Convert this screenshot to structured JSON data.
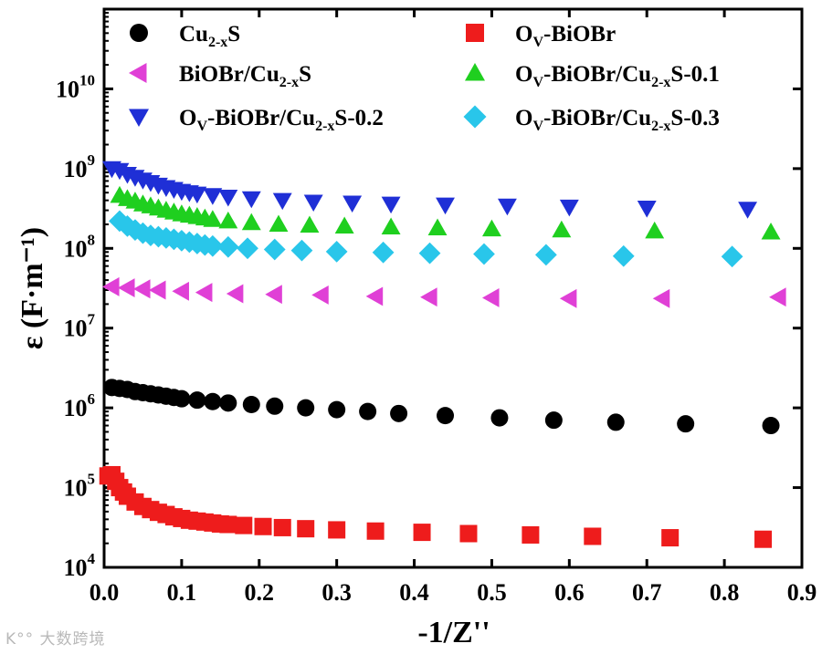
{
  "chart_data": {
    "type": "scatter",
    "xlabel": "-1/Z''",
    "ylabel": "ε (F·m⁻¹)",
    "xlim": [
      0.0,
      0.9
    ],
    "ylim_log10": [
      4,
      11
    ],
    "x_ticks": [
      "0.0",
      "0.1",
      "0.2",
      "0.3",
      "0.4",
      "0.5",
      "0.6",
      "0.7",
      "0.8",
      "0.9"
    ],
    "y_ticks": [
      {
        "base": "10",
        "exp": "4"
      },
      {
        "base": "10",
        "exp": "5"
      },
      {
        "base": "10",
        "exp": "6"
      },
      {
        "base": "10",
        "exp": "7"
      },
      {
        "base": "10",
        "exp": "8"
      },
      {
        "base": "10",
        "exp": "9"
      },
      {
        "base": "10",
        "exp": "10"
      }
    ],
    "legend": "top",
    "series": [
      {
        "name": "Cu2-xS",
        "label": {
          "pre": "",
          "pre_sub": "",
          "main": "Cu",
          "sub": "2-x",
          "post": "S"
        },
        "marker": "circle",
        "color": "#000000",
        "x": [
          0.01,
          0.02,
          0.03,
          0.04,
          0.05,
          0.06,
          0.07,
          0.08,
          0.09,
          0.1,
          0.12,
          0.14,
          0.16,
          0.19,
          0.22,
          0.26,
          0.3,
          0.34,
          0.38,
          0.44,
          0.51,
          0.58,
          0.66,
          0.75,
          0.86
        ],
        "y": [
          1800000.0,
          1750000.0,
          1700000.0,
          1600000.0,
          1550000.0,
          1500000.0,
          1450000.0,
          1400000.0,
          1350000.0,
          1300000.0,
          1250000.0,
          1200000.0,
          1150000.0,
          1100000.0,
          1050000.0,
          1000000.0,
          950000.0,
          900000.0,
          850000.0,
          800000.0,
          750000.0,
          700000.0,
          660000.0,
          630000.0,
          600000.0
        ]
      },
      {
        "name": "OV-BiOBr",
        "label": {
          "pre": "O",
          "pre_sub": "V",
          "main": "-BiOBr",
          "sub": "",
          "post": ""
        },
        "marker": "square",
        "color": "#ee1c1c",
        "x": [
          0.005,
          0.01,
          0.015,
          0.02,
          0.025,
          0.03,
          0.04,
          0.05,
          0.06,
          0.07,
          0.08,
          0.09,
          0.1,
          0.11,
          0.12,
          0.13,
          0.14,
          0.15,
          0.16,
          0.18,
          0.205,
          0.23,
          0.26,
          0.3,
          0.35,
          0.41,
          0.47,
          0.55,
          0.63,
          0.73,
          0.85
        ],
        "y": [
          140000.0,
          145000.0,
          120000.0,
          100000.0,
          88000.0,
          78000.0,
          66000.0,
          58000.0,
          53000.0,
          49000.0,
          46000.0,
          43000.0,
          41000.0,
          39000.0,
          38000.0,
          37000.0,
          36000.0,
          35000.0,
          34500.0,
          33500.0,
          32500.0,
          31500.0,
          30500.0,
          29500.0,
          28500.0,
          27500.0,
          26500.0,
          25500.0,
          24500.0,
          23500.0,
          22500.0
        ]
      },
      {
        "name": "BiOBr/Cu2-xS",
        "label": {
          "pre": "",
          "pre_sub": "",
          "main": "BiOBr/Cu",
          "sub": "2-x",
          "post": "S"
        },
        "marker": "triangle-left",
        "color": "#e040d6",
        "x": [
          0.01,
          0.03,
          0.05,
          0.07,
          0.1,
          0.13,
          0.17,
          0.22,
          0.28,
          0.35,
          0.42,
          0.5,
          0.6,
          0.72,
          0.87
        ],
        "y": [
          33000000.0,
          32000000.0,
          31000000.0,
          30000000.0,
          29000000.0,
          28000000.0,
          27000000.0,
          26500000.0,
          26000000.0,
          25000000.0,
          24500000.0,
          24000000.0,
          23500000.0,
          23500000.0,
          24500000.0
        ]
      },
      {
        "name": "OV-BiOBr/Cu2-xS-0.1",
        "label": {
          "pre": "O",
          "pre_sub": "V",
          "main": "-BiOBr/Cu",
          "sub": "2-x",
          "post": "S-0.1"
        },
        "marker": "triangle-up",
        "color": "#1fcf1f",
        "x": [
          0.02,
          0.03,
          0.04,
          0.05,
          0.06,
          0.07,
          0.08,
          0.09,
          0.1,
          0.11,
          0.12,
          0.13,
          0.14,
          0.16,
          0.19,
          0.225,
          0.265,
          0.31,
          0.37,
          0.43,
          0.5,
          0.59,
          0.71,
          0.86
        ],
        "y": [
          460000000.0,
          420000000.0,
          390000000.0,
          360000000.0,
          340000000.0,
          320000000.0,
          300000000.0,
          285000000.0,
          270000000.0,
          260000000.0,
          250000000.0,
          240000000.0,
          230000000.0,
          220000000.0,
          210000000.0,
          200000000.0,
          195000000.0,
          190000000.0,
          185000000.0,
          180000000.0,
          175000000.0,
          170000000.0,
          165000000.0,
          160000000.0
        ]
      },
      {
        "name": "OV-BiOBr/Cu2-xS-0.2",
        "label": {
          "pre": "O",
          "pre_sub": "V",
          "main": "-BiOBr/Cu",
          "sub": "2-x",
          "post": "S-0.2"
        },
        "marker": "triangle-down",
        "color": "#1f2fd6",
        "x": [
          0.01,
          0.02,
          0.03,
          0.04,
          0.05,
          0.06,
          0.07,
          0.08,
          0.09,
          0.1,
          0.11,
          0.12,
          0.14,
          0.16,
          0.19,
          0.23,
          0.27,
          0.32,
          0.37,
          0.44,
          0.52,
          0.6,
          0.7,
          0.83
        ],
        "y": [
          1000000000.0,
          950000000.0,
          850000000.0,
          780000000.0,
          720000000.0,
          670000000.0,
          620000000.0,
          580000000.0,
          550000000.0,
          520000000.0,
          500000000.0,
          480000000.0,
          460000000.0,
          440000000.0,
          420000000.0,
          400000000.0,
          380000000.0,
          370000000.0,
          360000000.0,
          350000000.0,
          340000000.0,
          330000000.0,
          320000000.0,
          310000000.0
        ]
      },
      {
        "name": "OV-BiOBr/Cu2-xS-0.3",
        "label": {
          "pre": "O",
          "pre_sub": "V",
          "main": "-BiOBr/Cu",
          "sub": "2-x",
          "post": "S-0.3"
        },
        "marker": "diamond",
        "color": "#29c6ea",
        "x": [
          0.02,
          0.03,
          0.04,
          0.05,
          0.06,
          0.07,
          0.08,
          0.09,
          0.1,
          0.11,
          0.12,
          0.13,
          0.14,
          0.16,
          0.185,
          0.22,
          0.255,
          0.3,
          0.36,
          0.42,
          0.49,
          0.57,
          0.67,
          0.81
        ],
        "y": [
          220000000.0,
          190000000.0,
          170000000.0,
          155000000.0,
          145000000.0,
          140000000.0,
          135000000.0,
          130000000.0,
          125000000.0,
          120000000.0,
          115000000.0,
          110000000.0,
          107000000.0,
          104000000.0,
          100000000.0,
          97000000.0,
          94000000.0,
          91000000.0,
          89000000.0,
          87000000.0,
          85000000.0,
          83000000.0,
          80000000.0,
          79000000.0
        ]
      }
    ]
  },
  "watermark": "K°° 大数跨境"
}
